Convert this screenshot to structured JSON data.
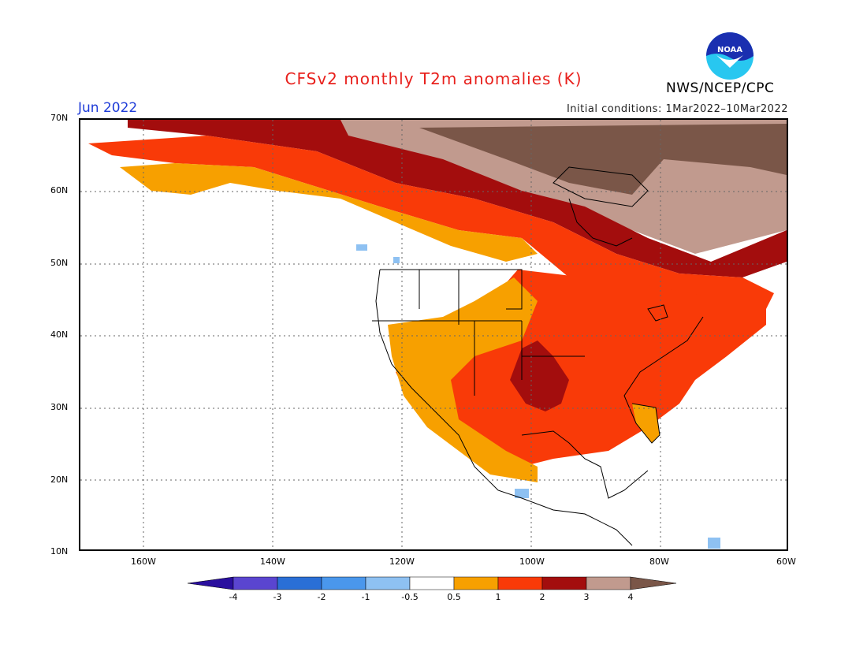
{
  "header": {
    "title": "CFSv2 monthly T2m anomalies (K)",
    "month": "Jun 2022",
    "initial_conditions": "Initial conditions: 1Mar2022–10Mar2022",
    "agency": "NWS/NCEP/CPC",
    "logo_text": "NOAA"
  },
  "map": {
    "lon_ticks": [
      "160W",
      "140W",
      "120W",
      "100W",
      "80W",
      "60W"
    ],
    "lat_ticks": [
      "70N",
      "60N",
      "50N",
      "40N",
      "30N",
      "20N",
      "10N"
    ]
  },
  "colorbar": {
    "labels": [
      "-4",
      "-3",
      "-2",
      "-1",
      "-0.5",
      "0.5",
      "1",
      "2",
      "3",
      "4"
    ],
    "colors": [
      "#2a0f9e",
      "#5a45d0",
      "#2a6fd6",
      "#4a97ec",
      "#8ec1f2",
      "#ffffff",
      "#f7a000",
      "#f93a08",
      "#a30d0d",
      "#c19a8e",
      "#7a5648"
    ]
  }
}
